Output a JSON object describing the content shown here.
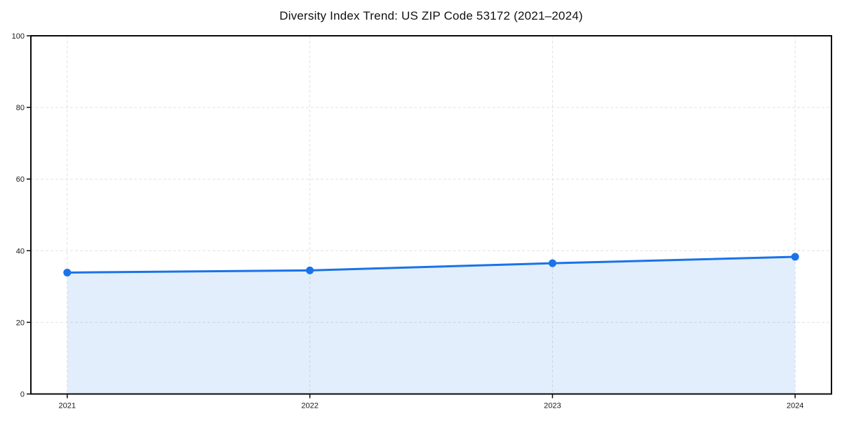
{
  "chart_data": {
    "type": "area",
    "title": "Diversity Index Trend: US ZIP Code 53172 (2021–2024)",
    "xlabel": "",
    "ylabel": "",
    "categories": [
      "2021",
      "2022",
      "2023",
      "2024"
    ],
    "series": [
      {
        "name": "Diversity Index",
        "values": [
          33.9,
          34.5,
          36.5,
          38.3
        ]
      }
    ],
    "ylim": [
      0,
      100
    ],
    "yticks": [
      0,
      20,
      40,
      60,
      80,
      100
    ],
    "grid": "dashed, both axes",
    "legend_position": "none",
    "line_color": "#1a73e8",
    "fill_color": "rgba(26,115,232,0.12)",
    "marker": "circle",
    "spine_color": "#0a0a0a",
    "gridline_color": "#e2e2e2",
    "tick_label_color": "#1a1a1a"
  }
}
